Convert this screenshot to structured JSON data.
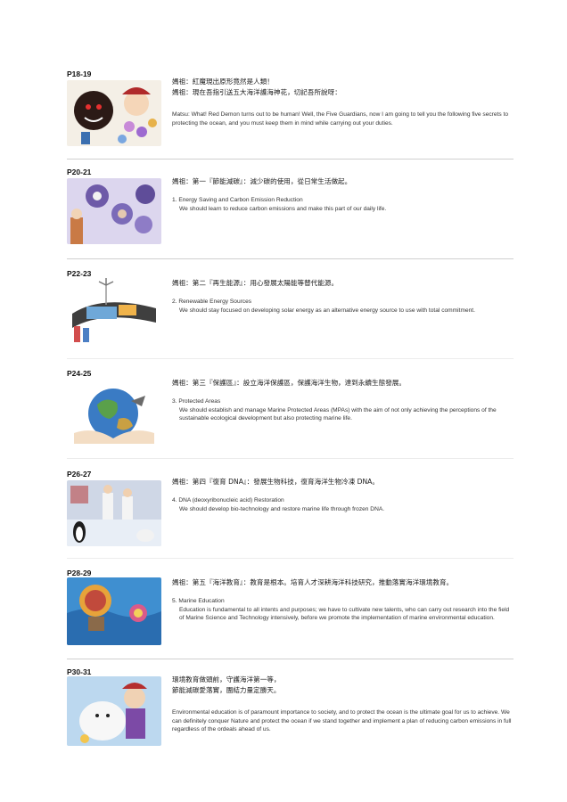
{
  "sections": [
    {
      "page": "P18-19",
      "zh": [
        "媽祖：紅魔現出原形竟然是人類！",
        "媽祖：現在吾指引送五大海洋護海神花，切記吾所說呀："
      ],
      "en_heading": "",
      "en_body": "Matsu: What! Red Demon turns out to be human! Well, the Five Guardians, now I am going to tell you the following five secrets to protecting the ocean, and you must keep them in mind while carrying out your duties."
    },
    {
      "page": "P20-21",
      "zh": [
        "媽祖：第一『節能減碳』：減少碳的使用，從日常生活做起。"
      ],
      "en_heading": "1. Energy Saving and Carbon Emission Reduction",
      "en_body": "We should learn to reduce carbon emissions and make this part of our daily life."
    },
    {
      "page": "P22-23",
      "zh": [
        "媽祖：第二『再生能源』：用心發展太陽能等替代能源。"
      ],
      "en_heading": "2. Renewable Energy Sources",
      "en_body": "We should stay focused on developing solar energy as an alternative energy source to use with total commitment."
    },
    {
      "page": "P24-25",
      "zh": [
        "媽祖：第三『保護區』：設立海洋保護區，保護海洋生物，達到永續生態發展。"
      ],
      "en_heading": "3. Protected Areas",
      "en_body": "We should establish and manage Marine Protected Areas (MPAs) with the aim of not only achieving the perceptions of the sustainable ecological development but also protecting marine life."
    },
    {
      "page": "P26-27",
      "zh": [
        "媽祖：第四『復育 DNA』：發展生物科技，復育海洋生物冷凍 DNA。"
      ],
      "en_heading": "4. DNA (deoxyribonucleic acid) Restoration",
      "en_body": "We should develop bio-technology and restore marine life through frozen DNA."
    },
    {
      "page": "P28-29",
      "zh": [
        "媽祖：第五『海洋教育』：教育是根本。培育人才深耕海洋科技研究，推動落實海洋環境教育。"
      ],
      "en_heading": "5. Marine Education",
      "en_body": "Education is fundamental to all intents and purposes; we have to cultivate new talents, who can carry out research into the field of Marine Science and Technology intensively, before we promote the implementation of marine environmental education."
    },
    {
      "page": "P30-31",
      "zh": [
        "環境教育做頭前，守護海洋第一等，",
        "節能減碳愛落實，團結力量定勝天。"
      ],
      "en_heading": "",
      "en_body": "Environmental education is of paramount importance to society, and to protect the ocean is the ultimate goal for us to achieve. We can definitely conquer Nature and protect the ocean if we stand together and implement a plan of reducing carbon emissions in full regardless of the ordeals ahead of us."
    }
  ]
}
